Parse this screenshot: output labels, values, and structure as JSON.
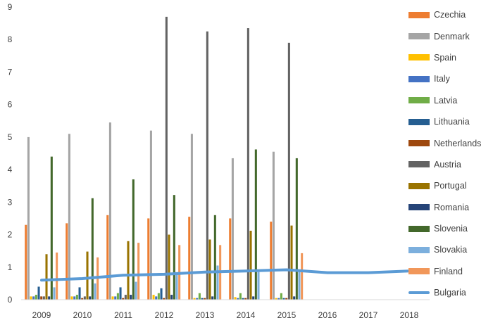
{
  "chart_data": {
    "type": "bar",
    "categories": [
      "2009",
      "2010",
      "2011",
      "2012",
      "2013",
      "2014",
      "2015",
      "2016",
      "2017",
      "2018"
    ],
    "ylim": [
      0,
      9
    ],
    "yticks": [
      0,
      1,
      2,
      3,
      4,
      5,
      6,
      7,
      8,
      9
    ],
    "grid": false,
    "legend_position": "right",
    "title": "",
    "xlabel": "",
    "ylabel": "",
    "series": [
      {
        "name": "Czechia",
        "kind": "bar",
        "color": "#ED7D31",
        "values": [
          2.3,
          2.35,
          2.6,
          2.5,
          2.55,
          2.5,
          2.4,
          null,
          null,
          null
        ]
      },
      {
        "name": "Denmark",
        "kind": "bar",
        "color": "#A5A5A5",
        "values": [
          5.0,
          5.1,
          5.45,
          5.2,
          5.1,
          4.35,
          4.55,
          null,
          null,
          null
        ]
      },
      {
        "name": "Spain",
        "kind": "bar",
        "color": "#FFC000",
        "values": [
          0.1,
          0.1,
          0.1,
          0.15,
          0.05,
          0.08,
          0.05,
          null,
          null,
          null
        ]
      },
      {
        "name": "Italy",
        "kind": "bar",
        "color": "#4472C4",
        "values": [
          0.1,
          0.1,
          0.1,
          0.1,
          0.05,
          0.05,
          0.05,
          null,
          null,
          null
        ]
      },
      {
        "name": "Latvia",
        "kind": "bar",
        "color": "#70AD47",
        "values": [
          0.15,
          0.15,
          0.2,
          0.2,
          0.2,
          0.2,
          0.2,
          null,
          null,
          null
        ]
      },
      {
        "name": "Lithuania",
        "kind": "bar",
        "color": "#255E91",
        "values": [
          0.4,
          0.38,
          0.38,
          0.35,
          0.05,
          0.05,
          0.05,
          null,
          null,
          null
        ]
      },
      {
        "name": "Netherlands",
        "kind": "bar",
        "color": "#9E480E",
        "values": [
          0.1,
          0.05,
          0.05,
          0.05,
          0.05,
          0.05,
          0.05,
          null,
          null,
          null
        ]
      },
      {
        "name": "Austria",
        "kind": "bar",
        "color": "#636363",
        "values": [
          0.1,
          0.1,
          0.15,
          8.7,
          8.25,
          8.35,
          7.9,
          null,
          null,
          null
        ]
      },
      {
        "name": "Portugal",
        "kind": "bar",
        "color": "#997300",
        "values": [
          1.4,
          1.48,
          1.8,
          2.0,
          1.85,
          2.12,
          2.28,
          null,
          null,
          null
        ]
      },
      {
        "name": "Romania",
        "kind": "bar",
        "color": "#264478",
        "values": [
          0.1,
          0.1,
          0.15,
          0.15,
          0.1,
          0.1,
          0.1,
          null,
          null,
          null
        ]
      },
      {
        "name": "Slovenia",
        "kind": "bar",
        "color": "#43682B",
        "values": [
          4.4,
          3.12,
          3.7,
          3.22,
          2.6,
          4.62,
          4.35,
          null,
          null,
          null
        ]
      },
      {
        "name": "Slovakia",
        "kind": "bar",
        "color": "#7CAFDD",
        "values": [
          0.38,
          0.5,
          0.55,
          0.8,
          1.05,
          0.85,
          0.9,
          null,
          null,
          null
        ]
      },
      {
        "name": "Finland",
        "kind": "bar",
        "color": "#F1975A",
        "values": [
          1.45,
          1.3,
          1.75,
          1.68,
          1.68,
          null,
          1.43,
          null,
          null,
          null
        ]
      },
      {
        "name": "Bulgaria",
        "kind": "line",
        "color": "#5B9BD5",
        "values": [
          0.6,
          0.65,
          0.75,
          0.78,
          0.85,
          0.88,
          0.92,
          0.83,
          0.83,
          0.88
        ]
      }
    ]
  }
}
